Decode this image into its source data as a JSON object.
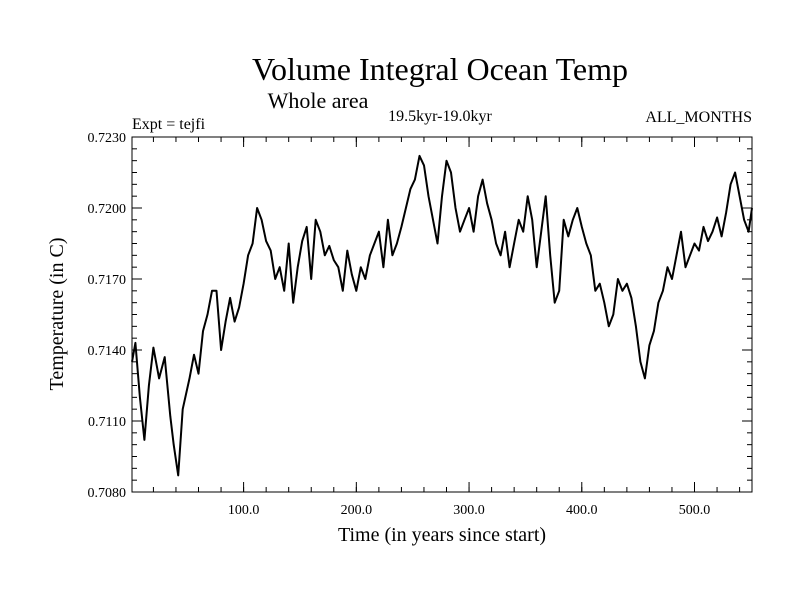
{
  "chart_data": {
    "type": "line",
    "title": "Volume Integral Ocean Temp",
    "subtitle": "Whole area",
    "period": "19.5kyr-19.0kyr",
    "expt_label": "Expt = tejfi",
    "months_label": "ALL_MONTHS",
    "xlabel": "Time (in years since start)",
    "ylabel": "Temperature (in C)",
    "xlim": [
      1,
      551
    ],
    "ylim": [
      0.708,
      0.723
    ],
    "x_ticks": [
      100,
      200,
      300,
      400,
      500
    ],
    "x_tick_labels": [
      "100.0",
      "200.0",
      "300.0",
      "400.0",
      "500.0"
    ],
    "y_ticks": [
      0.708,
      0.711,
      0.714,
      0.717,
      0.72,
      0.723
    ],
    "y_tick_labels": [
      "0.7080",
      "0.7110",
      "0.7140",
      "0.7170",
      "0.7200",
      "0.7230"
    ],
    "x_minor_step": 20,
    "y_minor_step": 0.0005,
    "series": [
      {
        "name": "Volume integral ocean temperature",
        "color": "#000000",
        "x": [
          1,
          4,
          8,
          12,
          16,
          20,
          25,
          30,
          35,
          38,
          42,
          46,
          52,
          56,
          60,
          64,
          68,
          72,
          76,
          80,
          84,
          88,
          92,
          96,
          100,
          104,
          108,
          112,
          116,
          120,
          124,
          128,
          132,
          136,
          140,
          144,
          148,
          152,
          156,
          160,
          164,
          168,
          172,
          176,
          180,
          184,
          188,
          192,
          196,
          200,
          204,
          208,
          212,
          216,
          220,
          224,
          228,
          232,
          236,
          240,
          244,
          248,
          252,
          256,
          260,
          264,
          268,
          272,
          276,
          280,
          284,
          288,
          292,
          296,
          300,
          304,
          308,
          312,
          316,
          320,
          324,
          328,
          332,
          336,
          340,
          344,
          348,
          352,
          356,
          360,
          364,
          368,
          372,
          376,
          380,
          384,
          388,
          392,
          396,
          400,
          404,
          408,
          412,
          416,
          420,
          424,
          428,
          432,
          436,
          440,
          444,
          448,
          452,
          456,
          460,
          464,
          468,
          472,
          476,
          480,
          484,
          488,
          492,
          496,
          500,
          504,
          508,
          512,
          516,
          520,
          524,
          528,
          532,
          536,
          540,
          544,
          548,
          551
        ],
        "values": [
          0.7135,
          0.7143,
          0.712,
          0.7102,
          0.7125,
          0.7141,
          0.7128,
          0.7137,
          0.7112,
          0.71,
          0.7087,
          0.7115,
          0.7128,
          0.7138,
          0.713,
          0.7148,
          0.7155,
          0.7165,
          0.7165,
          0.714,
          0.7152,
          0.7162,
          0.7152,
          0.7158,
          0.7168,
          0.718,
          0.7185,
          0.72,
          0.7195,
          0.7186,
          0.7182,
          0.717,
          0.7175,
          0.7165,
          0.7185,
          0.716,
          0.7175,
          0.7186,
          0.7192,
          0.717,
          0.7195,
          0.719,
          0.718,
          0.7184,
          0.7178,
          0.7175,
          0.7165,
          0.7182,
          0.7172,
          0.7165,
          0.7175,
          0.717,
          0.718,
          0.7185,
          0.719,
          0.7175,
          0.7195,
          0.718,
          0.7185,
          0.7192,
          0.72,
          0.7208,
          0.7212,
          0.7222,
          0.7218,
          0.7205,
          0.7195,
          0.7185,
          0.7205,
          0.722,
          0.7215,
          0.72,
          0.719,
          0.7195,
          0.72,
          0.719,
          0.7205,
          0.7212,
          0.7202,
          0.7195,
          0.7185,
          0.718,
          0.719,
          0.7175,
          0.7185,
          0.7195,
          0.719,
          0.7205,
          0.7195,
          0.7175,
          0.719,
          0.7205,
          0.718,
          0.716,
          0.7165,
          0.7195,
          0.7188,
          0.7195,
          0.72,
          0.7192,
          0.7185,
          0.718,
          0.7165,
          0.7168,
          0.716,
          0.715,
          0.7155,
          0.717,
          0.7165,
          0.7168,
          0.7162,
          0.715,
          0.7135,
          0.7128,
          0.7142,
          0.7148,
          0.716,
          0.7165,
          0.7175,
          0.717,
          0.718,
          0.719,
          0.7175,
          0.718,
          0.7185,
          0.7182,
          0.7192,
          0.7186,
          0.719,
          0.7196,
          0.7188,
          0.7198,
          0.721,
          0.7215,
          0.7205,
          0.7195,
          0.719,
          0.72
        ]
      }
    ]
  }
}
